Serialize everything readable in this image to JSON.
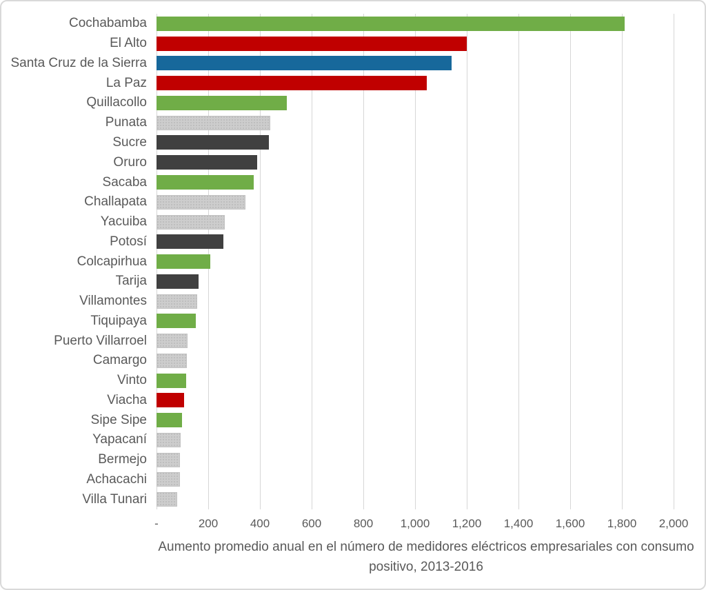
{
  "chart_data": {
    "type": "bar",
    "orientation": "horizontal",
    "axis_title": "Aumento promedio anual en el número de medidores eléctricos empresariales con consumo positivo, 2013-2016",
    "xlim": [
      0,
      2000
    ],
    "x_tick_step": 200,
    "x_tick_labels": [
      "-",
      "200",
      "400",
      "600",
      "800",
      "1,000",
      "1,200",
      "1,400",
      "1,600",
      "1,800",
      "2,000"
    ],
    "grid": "vertical",
    "legend": "none",
    "categories": [
      "Cochabamba",
      "El Alto",
      "Santa Cruz de la Sierra",
      "La Paz",
      "Quillacollo",
      "Punata",
      "Sucre",
      "Oruro",
      "Sacaba",
      "Challapata",
      "Yacuiba",
      "Potosí",
      "Colcapirhua",
      "Tarija",
      "Villamontes",
      "Tiquipaya",
      "Puerto Villarroel",
      "Camargo",
      "Vinto",
      "Viacha",
      "Sipe Sipe",
      "Yapacaní",
      "Bermejo",
      "Achacachi",
      "Villa Tunari"
    ],
    "values": [
      1810,
      1200,
      1140,
      1045,
      505,
      440,
      435,
      390,
      375,
      345,
      265,
      258,
      207,
      162,
      156,
      153,
      121,
      117,
      114,
      107,
      99,
      94,
      90,
      90,
      81
    ],
    "bar_color_keys": [
      "green",
      "red",
      "blue",
      "red",
      "green",
      "light_gray",
      "dark_gray",
      "dark_gray",
      "green",
      "light_gray",
      "light_gray",
      "dark_gray",
      "green",
      "dark_gray",
      "light_gray",
      "green",
      "light_gray",
      "light_gray",
      "green",
      "red",
      "green",
      "light_gray",
      "light_gray",
      "light_gray",
      "light_gray"
    ],
    "palette": {
      "green": "#70AD47",
      "red": "#C00000",
      "blue": "#17689B",
      "dark_gray": "#404040",
      "light_gray": "#CDCDCD"
    },
    "patterned_color_key": "light_gray",
    "gridline_color": "#D6D6D6",
    "label_color": "#595959",
    "background_color": "#FFFFFF"
  }
}
